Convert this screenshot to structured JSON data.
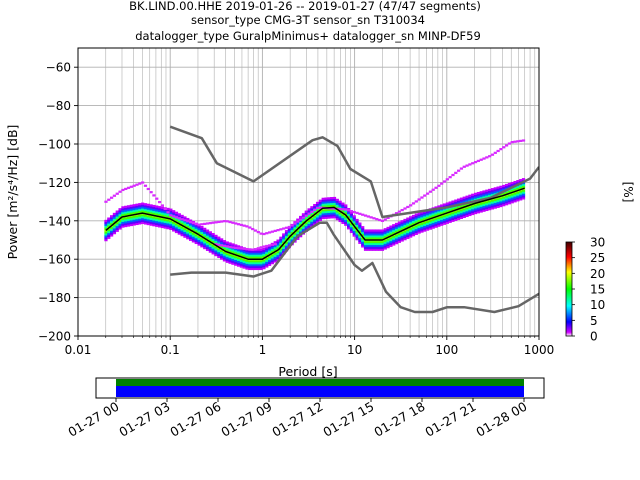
{
  "chart_data": [
    {
      "type": "heatmap",
      "title_lines": [
        "BK.LIND.00.HHE   2019-01-26 -- 2019-01-27  (47/47 segments)",
        "sensor_type CMG-3T sensor_sn T310034",
        "datalogger_type GuralpMinimus+ datalogger_sn MINP-DF59"
      ],
      "xlabel": "Period [s]",
      "ylabel": "Power [m²/s⁴/Hz] [dB]",
      "xscale": "log",
      "xlim": [
        0.01,
        1000
      ],
      "ylim": [
        -200,
        -50
      ],
      "x_ticks": [
        0.01,
        0.1,
        1,
        10,
        100,
        1000
      ],
      "x_tick_labels": [
        "0.01",
        "0.1",
        "1",
        "10",
        "100",
        "1000"
      ],
      "y_ticks": [
        -200,
        -180,
        -160,
        -140,
        -120,
        -100,
        -80,
        -60
      ],
      "y_tick_labels": [
        "−200",
        "−180",
        "−160",
        "−140",
        "−120",
        "−100",
        "−80",
        "−60"
      ],
      "grid": true,
      "colorbar": {
        "label": "[%]",
        "range": [
          0,
          30
        ],
        "ticks": [
          0,
          5,
          10,
          15,
          20,
          25,
          30
        ],
        "tick_labels": [
          "0",
          "5",
          "10",
          "15",
          "20",
          "25",
          "30"
        ]
      },
      "series": [
        {
          "role": "new-high-noise-model",
          "color": "#666666",
          "points": [
            [
              0.1,
              -91
            ],
            [
              0.22,
              -97
            ],
            [
              0.32,
              -110
            ],
            [
              0.8,
              -119.5
            ],
            [
              3.5,
              -98
            ],
            [
              4.5,
              -96.5
            ],
            [
              6.5,
              -101
            ],
            [
              9,
              -113
            ],
            [
              15,
              -119.5
            ],
            [
              20,
              -138
            ],
            [
              100,
              -133
            ],
            [
              300,
              -128
            ],
            [
              800,
              -118
            ],
            [
              1000,
              -112
            ]
          ]
        },
        {
          "role": "new-low-noise-model",
          "color": "#666666",
          "points": [
            [
              0.1,
              -168
            ],
            [
              0.17,
              -167
            ],
            [
              0.4,
              -167
            ],
            [
              0.8,
              -169
            ],
            [
              1.25,
              -166
            ],
            [
              2.4,
              -148
            ],
            [
              4.2,
              -141
            ],
            [
              5,
              -141
            ],
            [
              6,
              -147.5
            ],
            [
              10,
              -163
            ],
            [
              12,
              -166
            ],
            [
              15.6,
              -162
            ],
            [
              21.9,
              -177
            ],
            [
              31.6,
              -185
            ],
            [
              45,
              -187.5
            ],
            [
              70,
              -187.5
            ],
            [
              101,
              -185
            ],
            [
              154,
              -185
            ],
            [
              328,
              -187.5
            ],
            [
              600,
              -184.5
            ],
            [
              1000,
              -178
            ]
          ]
        },
        {
          "role": "mode",
          "color": "#000000",
          "points": [
            [
              0.02,
              -145
            ],
            [
              0.03,
              -138
            ],
            [
              0.05,
              -136
            ],
            [
              0.1,
              -139
            ],
            [
              0.2,
              -147
            ],
            [
              0.4,
              -156
            ],
            [
              0.7,
              -160
            ],
            [
              1,
              -160
            ],
            [
              1.5,
              -155
            ],
            [
              2,
              -148
            ],
            [
              3,
              -140
            ],
            [
              4.5,
              -133.5
            ],
            [
              6,
              -133
            ],
            [
              8,
              -137
            ],
            [
              10,
              -143
            ],
            [
              13,
              -150
            ],
            [
              20,
              -150
            ],
            [
              30,
              -146
            ],
            [
              50,
              -141
            ],
            [
              100,
              -136
            ],
            [
              200,
              -131
            ],
            [
              400,
              -127
            ],
            [
              700,
              -123
            ]
          ]
        }
      ],
      "density_bands": [
        {
          "role": "main-density",
          "percent": 18,
          "points": [
            [
              0.02,
              -145
            ],
            [
              0.03,
              -138
            ],
            [
              0.05,
              -136
            ],
            [
              0.1,
              -139
            ],
            [
              0.2,
              -147
            ],
            [
              0.4,
              -156
            ],
            [
              0.7,
              -160
            ],
            [
              1,
              -160
            ],
            [
              1.5,
              -155
            ],
            [
              2,
              -148
            ],
            [
              3,
              -140
            ],
            [
              4.5,
              -133.5
            ],
            [
              6,
              -133
            ],
            [
              8,
              -137
            ],
            [
              10,
              -143
            ],
            [
              13,
              -150
            ],
            [
              20,
              -150
            ],
            [
              30,
              -146
            ],
            [
              50,
              -141
            ],
            [
              100,
              -136
            ],
            [
              200,
              -131
            ],
            [
              400,
              -127
            ],
            [
              700,
              -123
            ]
          ]
        },
        {
          "role": "sparse-upper",
          "percent": 1,
          "points": [
            [
              0.02,
              -130
            ],
            [
              0.03,
              -124
            ],
            [
              0.05,
              -120
            ],
            [
              0.07,
              -128
            ],
            [
              0.1,
              -137
            ],
            [
              0.2,
              -142
            ],
            [
              0.4,
              -140
            ],
            [
              0.7,
              -143
            ],
            [
              1,
              -147
            ],
            [
              2,
              -143
            ],
            [
              4,
              -133
            ],
            [
              8,
              -134
            ],
            [
              20,
              -140
            ],
            [
              40,
              -132
            ],
            [
              80,
              -122
            ],
            [
              150,
              -112
            ],
            [
              300,
              -106
            ],
            [
              500,
              -99
            ],
            [
              700,
              -98
            ]
          ]
        },
        {
          "role": "sparse-lower",
          "percent": 1,
          "points": [
            [
              0.3,
              -152
            ],
            [
              0.5,
              -154
            ],
            [
              0.8,
              -155
            ],
            [
              1,
              -153.5
            ],
            [
              1.4,
              -152
            ]
          ]
        }
      ]
    },
    {
      "type": "timeline",
      "x_tick_labels": [
        "01-27 00",
        "01-27 03",
        "01-27 06",
        "01-27 09",
        "01-27 12",
        "01-27 15",
        "01-27 18",
        "01-27 21",
        "01-28 00"
      ],
      "data_coverage": {
        "start": "01-27 00",
        "end": "01-28 00",
        "color": "#0000ff"
      },
      "psd_coverage": {
        "start": "01-27 00",
        "end": "01-28 00",
        "color": "#008000"
      }
    }
  ]
}
